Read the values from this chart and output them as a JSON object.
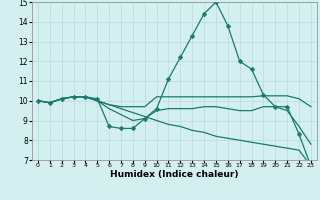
{
  "xlabel": "Humidex (Indice chaleur)",
  "bg_color": "#d4efef",
  "grid_color": "#c0dede",
  "line_color": "#1a7a6e",
  "xlim": [
    -0.5,
    23.5
  ],
  "ylim": [
    7,
    15
  ],
  "yticks": [
    7,
    8,
    9,
    10,
    11,
    12,
    13,
    14,
    15
  ],
  "xticks": [
    0,
    1,
    2,
    3,
    4,
    5,
    6,
    7,
    8,
    9,
    10,
    11,
    12,
    13,
    14,
    15,
    16,
    17,
    18,
    19,
    20,
    21,
    22,
    23
  ],
  "line1_x": [
    0,
    1,
    2,
    3,
    4,
    5,
    6,
    7,
    8,
    9,
    10,
    11,
    12,
    13,
    14,
    15,
    16,
    17,
    18,
    19,
    20,
    21,
    22,
    23
  ],
  "line1_y": [
    10.0,
    9.9,
    10.1,
    10.2,
    10.2,
    10.1,
    8.7,
    8.6,
    8.6,
    9.1,
    9.6,
    11.1,
    12.2,
    13.3,
    14.4,
    15.0,
    13.8,
    12.0,
    11.6,
    10.3,
    9.7,
    9.7,
    8.3,
    6.7
  ],
  "line2_x": [
    0,
    1,
    2,
    3,
    4,
    5,
    6,
    7,
    8,
    9,
    10,
    11,
    12,
    13,
    14,
    15,
    16,
    17,
    18,
    19,
    20,
    21,
    22,
    23
  ],
  "line2_y": [
    10.0,
    9.9,
    10.1,
    10.2,
    10.2,
    10.0,
    9.8,
    9.7,
    9.7,
    9.7,
    10.2,
    10.2,
    10.2,
    10.2,
    10.2,
    10.2,
    10.2,
    10.2,
    10.2,
    10.25,
    10.25,
    10.25,
    10.1,
    9.7
  ],
  "line3_x": [
    0,
    1,
    2,
    3,
    4,
    5,
    6,
    7,
    8,
    9,
    10,
    11,
    12,
    13,
    14,
    15,
    16,
    17,
    18,
    19,
    20,
    21,
    22,
    23
  ],
  "line3_y": [
    10.0,
    9.9,
    10.1,
    10.2,
    10.2,
    10.0,
    9.6,
    9.3,
    9.0,
    9.1,
    9.5,
    9.6,
    9.6,
    9.6,
    9.7,
    9.7,
    9.6,
    9.5,
    9.5,
    9.7,
    9.7,
    9.5,
    8.7,
    7.8
  ],
  "line4_x": [
    0,
    1,
    2,
    3,
    4,
    5,
    6,
    7,
    8,
    9,
    10,
    11,
    12,
    13,
    14,
    15,
    16,
    17,
    18,
    19,
    20,
    21,
    22,
    23
  ],
  "line4_y": [
    10.0,
    9.9,
    10.1,
    10.2,
    10.2,
    10.0,
    9.8,
    9.6,
    9.4,
    9.2,
    9.0,
    8.8,
    8.7,
    8.5,
    8.4,
    8.2,
    8.1,
    8.0,
    7.9,
    7.8,
    7.7,
    7.6,
    7.5,
    6.7
  ]
}
